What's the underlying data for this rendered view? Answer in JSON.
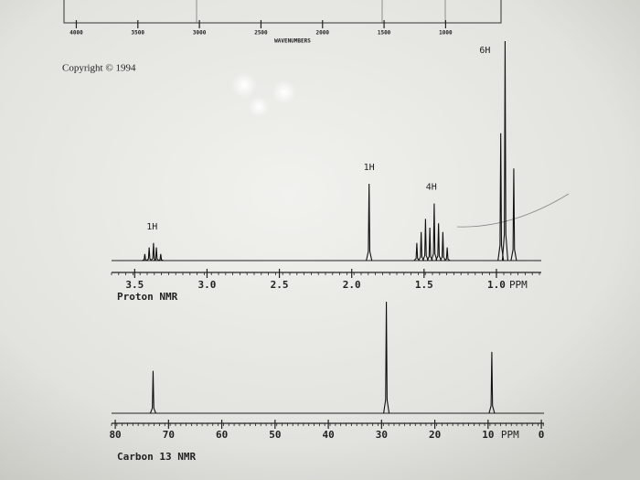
{
  "copyright": "Copyright © 1994",
  "chart_data": [
    {
      "type": "ir-axis",
      "xlabel": "WAVENUMBERS",
      "xlim": [
        4100,
        550
      ],
      "xticks": [
        4000,
        3500,
        3000,
        2500,
        2000,
        1500,
        1000
      ]
    },
    {
      "type": "nmr",
      "xlabel": "Proton NMR",
      "unit": "PPM",
      "xlim": [
        3.66,
        0.69
      ],
      "ylim": [
        0,
        100
      ],
      "xticks": [
        3.5,
        {
          "value": 3.0,
          "label": "3.0"
        },
        2.5,
        {
          "value": 2.0,
          "label": "2.0"
        },
        1.5,
        {
          "value": 1.0,
          "label": "1.0"
        }
      ],
      "x": [
        3.43,
        3.4,
        3.37,
        3.35,
        3.32,
        1.88,
        1.55,
        1.52,
        1.49,
        1.46,
        1.43,
        1.4,
        1.37,
        1.34,
        0.97,
        0.94,
        0.88
      ],
      "values": [
        3,
        6,
        8,
        6,
        3,
        35,
        8,
        13,
        19,
        15,
        26,
        17,
        13,
        6,
        58,
        100,
        42
      ],
      "annotations": [
        {
          "text": "1H",
          "x": 3.38
        },
        {
          "text": "1H",
          "x": 1.88
        },
        {
          "text": "4H",
          "x": 1.45
        },
        {
          "text": "6H",
          "x": 0.94
        }
      ]
    },
    {
      "type": "nmr",
      "xlabel": "Carbon 13 NMR",
      "unit": "PPM",
      "xlim": [
        80.7,
        -0.5
      ],
      "ylim": [
        0,
        100
      ],
      "xticks": [
        80,
        70,
        60,
        50,
        40,
        30,
        20,
        10,
        0
      ],
      "x": [
        72.9,
        29.1,
        9.3
      ],
      "values": [
        38,
        100,
        55
      ]
    }
  ]
}
